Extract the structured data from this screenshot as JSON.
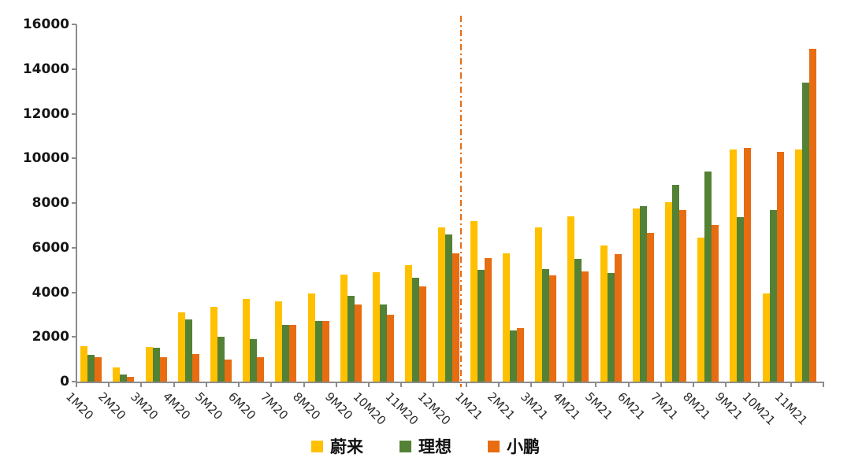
{
  "chart_data": {
    "type": "bar",
    "title": "",
    "categories": [
      "1M20",
      "2M20",
      "3M20",
      "4M20",
      "5M20",
      "6M20",
      "7M20",
      "8M20",
      "9M20",
      "10M20",
      "11M20",
      "12M20",
      "1M21",
      "2M21",
      "3M21",
      "4M21",
      "5M21",
      "6M21",
      "7M21",
      "8M21",
      "9M21",
      "10M21",
      "11M21"
    ],
    "series": [
      {
        "key": "nio",
        "name": "蔚来",
        "color": "#FFC000",
        "values": [
          1600,
          650,
          1550,
          3100,
          3350,
          3700,
          3600,
          3950,
          4800,
          4900,
          5200,
          6900,
          7200,
          5750,
          6900,
          7400,
          6100,
          7750,
          8050,
          6450,
          10400,
          3950,
          10400
        ]
      },
      {
        "key": "li-auto",
        "name": "理想",
        "color": "#538135",
        "values": [
          1200,
          300,
          1500,
          2800,
          2000,
          1900,
          2550,
          2700,
          3850,
          3450,
          4650,
          6600,
          5000,
          2300,
          5050,
          5500,
          4850,
          7850,
          8800,
          9400,
          7350,
          7700,
          13400
        ]
      },
      {
        "key": "xpeng",
        "name": "小鹏",
        "color": "#E86C12",
        "values": [
          1100,
          200,
          1100,
          1250,
          1000,
          1100,
          2550,
          2700,
          3450,
          3000,
          4250,
          5750,
          5550,
          2400,
          4750,
          4950,
          5700,
          6650,
          7700,
          7000,
          10450,
          10300,
          14900
        ]
      }
    ],
    "ylim": [
      0,
      16000
    ],
    "yticks": [
      0,
      2000,
      4000,
      6000,
      8000,
      10000,
      12000,
      14000,
      16000
    ],
    "xlabel": "",
    "ylabel": "",
    "grid": false,
    "legend_position": "bottom",
    "annotations": [
      {
        "type": "vline",
        "after_category": "12M20",
        "style": "dash-dot",
        "color": "#E86C12"
      }
    ]
  }
}
